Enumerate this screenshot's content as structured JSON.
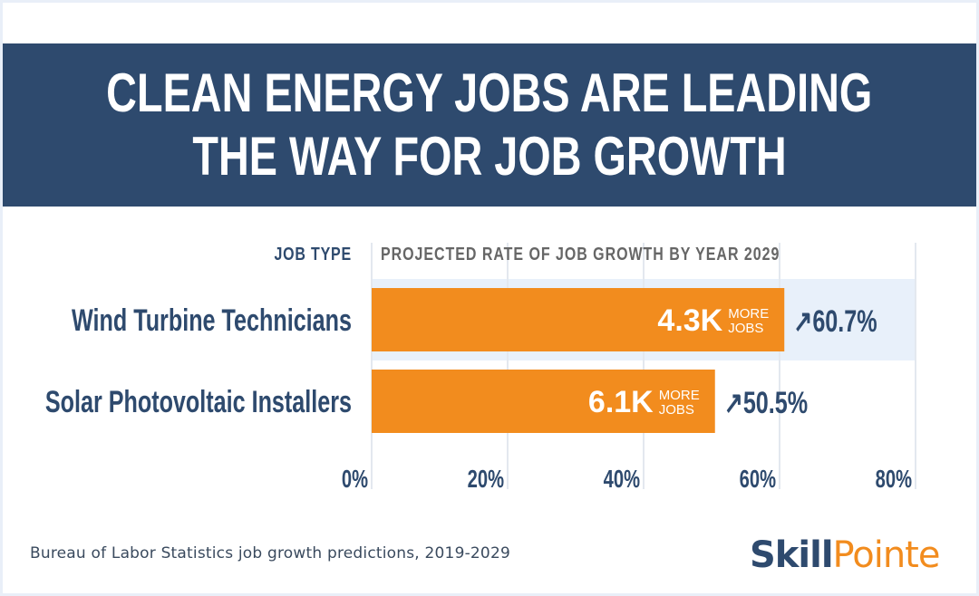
{
  "header": {
    "title_line1": "CLEAN ENERGY JOBS ARE LEADING",
    "title_line2": "THE WAY FOR JOB GROWTH"
  },
  "footer": {
    "source": "Bureau of Labor Statistics job growth predictions, 2019-2029",
    "brand_part1": "Skill",
    "brand_part2": "Pointe"
  },
  "chart_data": {
    "type": "bar",
    "orientation": "horizontal",
    "category_header": "JOB TYPE",
    "title": "PROJECTED RATE OF JOB GROWTH BY YEAR 2029",
    "categories": [
      "Wind Turbine Technicians",
      "Solar Photovoltaic Installers"
    ],
    "values": [
      60.7,
      50.5
    ],
    "value_labels": [
      "↗60.7%",
      "↗50.5%"
    ],
    "jobs_labels": [
      "4.3K",
      "6.1K"
    ],
    "jobs_suffix_line1": "MORE",
    "jobs_suffix_line2": "JOBS",
    "xlim": [
      0,
      80
    ],
    "xticks": [
      0,
      20,
      40,
      60,
      80
    ],
    "xtick_labels": [
      "0%",
      "20%",
      "40%",
      "60%",
      "80%"
    ],
    "grid": true,
    "colors": {
      "bar": "#f28c1e",
      "label": "#2e4a6e",
      "highlight_row": "#e8f0fa",
      "grid": "#e3e8ef",
      "header_text": "#2e4a6e",
      "title_text": "#666666"
    }
  }
}
